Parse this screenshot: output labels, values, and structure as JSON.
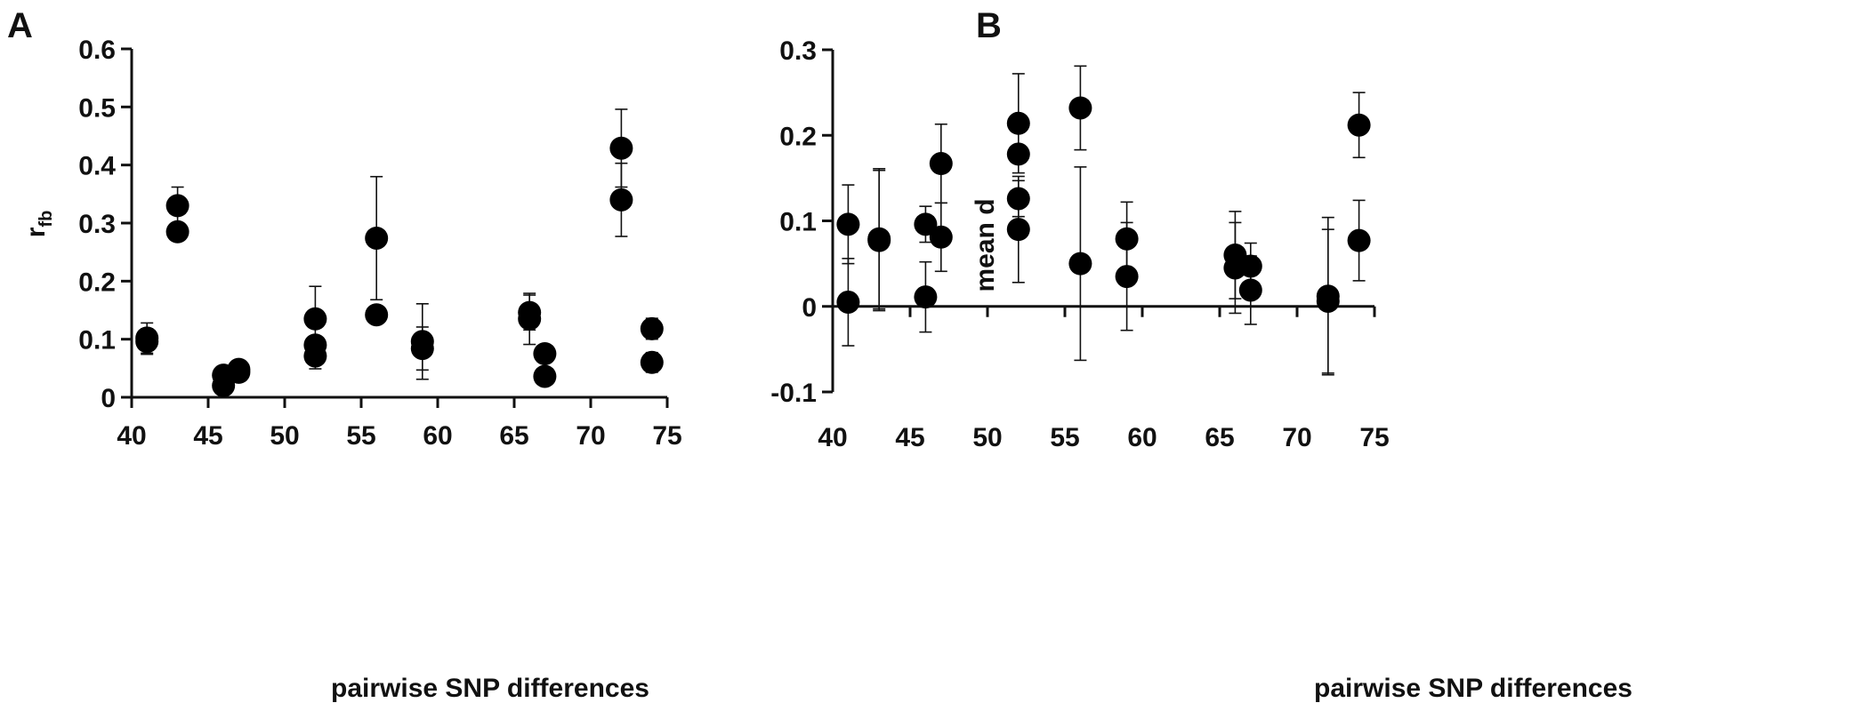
{
  "chart_data": [
    {
      "panel": "A",
      "type": "scatter",
      "xlabel": "pairwise SNP differences",
      "ylabel_main": "r",
      "ylabel_sub": "fb",
      "xlim": [
        40,
        75
      ],
      "ylim": [
        0,
        0.6
      ],
      "x_ticks": [
        40,
        45,
        50,
        55,
        60,
        65,
        70,
        75
      ],
      "y_ticks": [
        0,
        0.1,
        0.2,
        0.3,
        0.4,
        0.5,
        0.6
      ],
      "x_tick_labels": [
        "40",
        "45",
        "50",
        "55",
        "60",
        "65",
        "70",
        "75"
      ],
      "y_tick_labels": [
        "0",
        "0.1",
        "0.2",
        "0.3",
        "0.4",
        "0.5",
        "0.6"
      ],
      "grid": false,
      "points": [
        {
          "x": 41,
          "y": 0.102,
          "err": 0.026
        },
        {
          "x": 41,
          "y": 0.096,
          "err": 0.022
        },
        {
          "x": 43,
          "y": 0.33,
          "err": 0.032
        },
        {
          "x": 43,
          "y": 0.285,
          "err": 0.0
        },
        {
          "x": 46,
          "y": 0.038,
          "err": 0.0
        },
        {
          "x": 46,
          "y": 0.02,
          "err": 0.0
        },
        {
          "x": 47,
          "y": 0.048,
          "err": 0.008
        },
        {
          "x": 47,
          "y": 0.043,
          "err": 0.0
        },
        {
          "x": 52,
          "y": 0.135,
          "err": 0.056
        },
        {
          "x": 52,
          "y": 0.09,
          "err": 0.0
        },
        {
          "x": 52,
          "y": 0.071,
          "err": 0.022
        },
        {
          "x": 56,
          "y": 0.274,
          "err": 0.106
        },
        {
          "x": 56,
          "y": 0.142,
          "err": 0.014
        },
        {
          "x": 59,
          "y": 0.096,
          "err": 0.065
        },
        {
          "x": 59,
          "y": 0.084,
          "err": 0.037
        },
        {
          "x": 66,
          "y": 0.146,
          "err": 0.03
        },
        {
          "x": 66,
          "y": 0.135,
          "err": 0.044
        },
        {
          "x": 67,
          "y": 0.075,
          "err": 0.0
        },
        {
          "x": 67,
          "y": 0.036,
          "err": 0.0
        },
        {
          "x": 72,
          "y": 0.429,
          "err": 0.067
        },
        {
          "x": 72,
          "y": 0.34,
          "err": 0.063
        },
        {
          "x": 74,
          "y": 0.118,
          "err": 0.018
        },
        {
          "x": 74,
          "y": 0.06,
          "err": 0.017
        }
      ]
    },
    {
      "panel": "B",
      "type": "scatter",
      "xlabel": "pairwise SNP differences",
      "ylabel": "mean d",
      "xlim": [
        40,
        75
      ],
      "ylim": [
        -0.1,
        0.3
      ],
      "x_ticks": [
        40,
        45,
        50,
        55,
        60,
        65,
        70,
        75
      ],
      "y_ticks": [
        -0.1,
        0,
        0.1,
        0.2,
        0.3
      ],
      "x_tick_labels": [
        "40",
        "45",
        "50",
        "55",
        "60",
        "65",
        "70",
        "75"
      ],
      "y_tick_labels": [
        "-0.1",
        "0",
        "0.1",
        "0.2",
        "0.3"
      ],
      "grid": false,
      "points": [
        {
          "x": 41,
          "y": 0.096,
          "err": 0.046
        },
        {
          "x": 41,
          "y": 0.005,
          "err": 0.051
        },
        {
          "x": 43,
          "y": 0.079,
          "err": 0.082
        },
        {
          "x": 43,
          "y": 0.077,
          "err": 0.082
        },
        {
          "x": 46,
          "y": 0.096,
          "err": 0.021
        },
        {
          "x": 46,
          "y": 0.011,
          "err": 0.041
        },
        {
          "x": 47,
          "y": 0.167,
          "err": 0.046
        },
        {
          "x": 47,
          "y": 0.081,
          "err": 0.04
        },
        {
          "x": 52,
          "y": 0.214,
          "err": 0.058
        },
        {
          "x": 52,
          "y": 0.178,
          "err": 0.0
        },
        {
          "x": 52,
          "y": 0.126,
          "err": 0.021
        },
        {
          "x": 52,
          "y": 0.09,
          "err": 0.062
        },
        {
          "x": 56,
          "y": 0.232,
          "err": 0.049
        },
        {
          "x": 56,
          "y": 0.05,
          "err": 0.113
        },
        {
          "x": 59,
          "y": 0.079,
          "err": 0.043
        },
        {
          "x": 59,
          "y": 0.035,
          "err": 0.063
        },
        {
          "x": 66,
          "y": 0.06,
          "err": 0.051
        },
        {
          "x": 66,
          "y": 0.045,
          "err": 0.053
        },
        {
          "x": 67,
          "y": 0.047,
          "err": 0.027
        },
        {
          "x": 67,
          "y": 0.019,
          "err": 0.04
        },
        {
          "x": 72,
          "y": 0.012,
          "err": 0.092
        },
        {
          "x": 72,
          "y": 0.006,
          "err": 0.084
        },
        {
          "x": 74,
          "y": 0.212,
          "err": 0.038
        },
        {
          "x": 74,
          "y": 0.077,
          "err": 0.047
        }
      ]
    }
  ]
}
